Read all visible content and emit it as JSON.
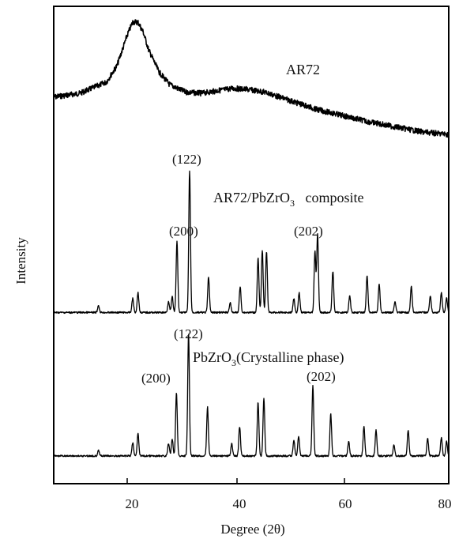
{
  "chart_data": {
    "type": "line",
    "title": "",
    "xlabel": "Degree (2θ)",
    "ylabel": "Intensity",
    "xlim": [
      5,
      80
    ],
    "x_ticks": [
      "20",
      "40",
      "60",
      "80"
    ],
    "y_ticks": "none",
    "grid": false,
    "legend": "none",
    "series": [
      {
        "name": "AR72",
        "style": "broad amorphous halo",
        "x": [
          5,
          10,
          15,
          17,
          19,
          20,
          21,
          22,
          23,
          25,
          27,
          30,
          33,
          36,
          39,
          42,
          45,
          50,
          55,
          60,
          65,
          70,
          75,
          80
        ],
        "y": [
          0.4,
          0.43,
          0.52,
          0.65,
          0.9,
          1.0,
          1.0,
          0.92,
          0.78,
          0.6,
          0.5,
          0.44,
          0.43,
          0.45,
          0.47,
          0.46,
          0.44,
          0.37,
          0.3,
          0.25,
          0.2,
          0.16,
          0.12,
          0.1
        ]
      },
      {
        "name": "AR72/PbZrO3 composite",
        "style": "sharp diffraction peaks",
        "baseline": 0.02,
        "peaks": [
          {
            "x": 13.5,
            "y": 0.05
          },
          {
            "x": 20.0,
            "y": 0.1
          },
          {
            "x": 21.0,
            "y": 0.14
          },
          {
            "x": 26.8,
            "y": 0.08
          },
          {
            "x": 27.5,
            "y": 0.11
          },
          {
            "x": 28.4,
            "y": 0.5,
            "label": "(200)"
          },
          {
            "x": 30.8,
            "y": 1.0,
            "label": "(122)"
          },
          {
            "x": 34.4,
            "y": 0.25
          },
          {
            "x": 38.5,
            "y": 0.07
          },
          {
            "x": 40.4,
            "y": 0.18
          },
          {
            "x": 43.8,
            "y": 0.38
          },
          {
            "x": 44.6,
            "y": 0.44
          },
          {
            "x": 45.4,
            "y": 0.43
          },
          {
            "x": 50.6,
            "y": 0.1
          },
          {
            "x": 51.6,
            "y": 0.14
          },
          {
            "x": 54.6,
            "y": 0.43
          },
          {
            "x": 55.1,
            "y": 0.55,
            "label": "(202)"
          },
          {
            "x": 58.0,
            "y": 0.29
          },
          {
            "x": 61.2,
            "y": 0.12
          },
          {
            "x": 64.5,
            "y": 0.26
          },
          {
            "x": 66.8,
            "y": 0.2
          },
          {
            "x": 69.8,
            "y": 0.08
          },
          {
            "x": 72.9,
            "y": 0.18
          },
          {
            "x": 76.5,
            "y": 0.12
          },
          {
            "x": 78.6,
            "y": 0.14
          },
          {
            "x": 79.6,
            "y": 0.1
          }
        ]
      },
      {
        "name": "PbZrO3(Crystalline phase)",
        "style": "sharp diffraction peaks",
        "baseline": 0.02,
        "peaks": [
          {
            "x": 13.5,
            "y": 0.05
          },
          {
            "x": 20.0,
            "y": 0.11
          },
          {
            "x": 21.0,
            "y": 0.18
          },
          {
            "x": 26.8,
            "y": 0.1
          },
          {
            "x": 27.5,
            "y": 0.14
          },
          {
            "x": 28.3,
            "y": 0.52,
            "label": "(200)"
          },
          {
            "x": 30.6,
            "y": 1.0,
            "label": "(122)"
          },
          {
            "x": 34.2,
            "y": 0.4
          },
          {
            "x": 38.8,
            "y": 0.1
          },
          {
            "x": 40.3,
            "y": 0.24
          },
          {
            "x": 43.8,
            "y": 0.44
          },
          {
            "x": 44.9,
            "y": 0.47
          },
          {
            "x": 50.6,
            "y": 0.13
          },
          {
            "x": 51.5,
            "y": 0.16
          },
          {
            "x": 54.2,
            "y": 0.57,
            "label": "(202)"
          },
          {
            "x": 57.6,
            "y": 0.34
          },
          {
            "x": 61.0,
            "y": 0.12
          },
          {
            "x": 63.9,
            "y": 0.24
          },
          {
            "x": 66.2,
            "y": 0.21
          },
          {
            "x": 69.6,
            "y": 0.09
          },
          {
            "x": 72.3,
            "y": 0.21
          },
          {
            "x": 76.0,
            "y": 0.14
          },
          {
            "x": 78.6,
            "y": 0.15
          },
          {
            "x": 79.6,
            "y": 0.12
          }
        ]
      }
    ],
    "annotations": {
      "top_label": "AR72",
      "mid_label_main": "AR72/PbZrO",
      "mid_label_sub": "3",
      "mid_label_tail": "   composite",
      "bot_label_main": "PbZrO",
      "bot_label_sub": "3",
      "bot_label_tail": "(Crystalline phase)",
      "peak_200": "(200)",
      "peak_122": "(122)",
      "peak_202": "(202)"
    }
  }
}
